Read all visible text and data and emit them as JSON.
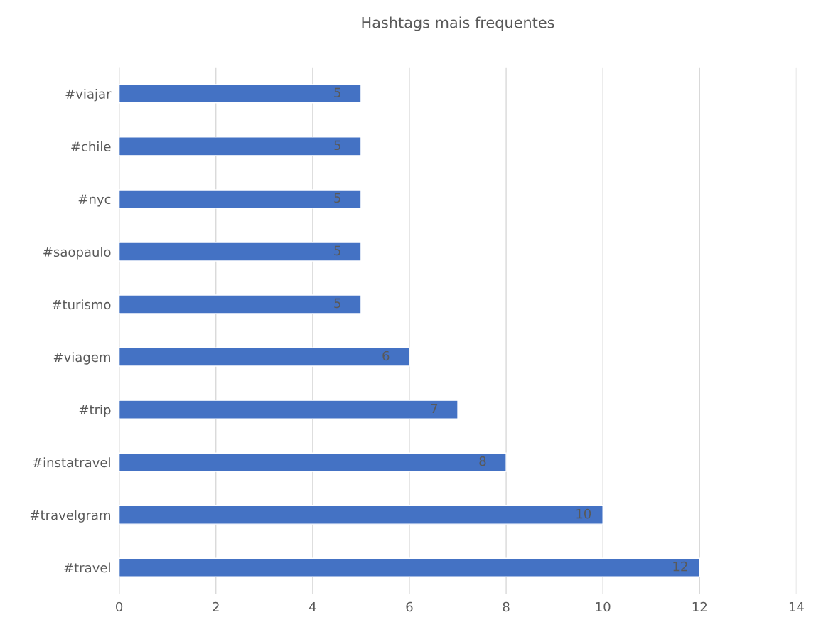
{
  "chart_data": {
    "type": "bar",
    "orientation": "horizontal",
    "title": "Hashtags mais frequentes",
    "categories": [
      "#viajar",
      "#chile",
      "#nyc",
      "#saopaulo",
      "#turismo",
      "#viagem",
      "#trip",
      "#instatravel",
      "#travelgram",
      "#travel"
    ],
    "values": [
      5,
      5,
      5,
      5,
      5,
      6,
      7,
      8,
      10,
      12
    ],
    "color": "#4472c4",
    "xlim": [
      0,
      14
    ],
    "xticks": [
      0,
      2,
      4,
      6,
      8,
      10,
      12,
      14
    ],
    "grid": "x",
    "data_labels": true
  }
}
